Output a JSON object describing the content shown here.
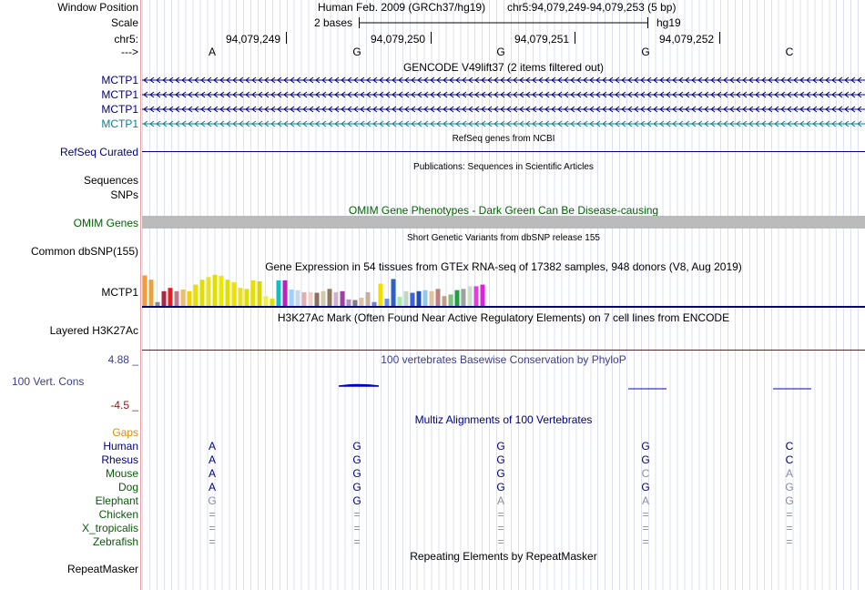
{
  "header": {
    "window_position_label": "Window Position",
    "assembly": "Human Feb. 2009 (GRCh37/hg19)",
    "position": "chr5:94,079,249-94,079,253 (5 bp)",
    "scale_label": "Scale",
    "scale_text": "2 bases",
    "scale_db": "hg19",
    "chrom_label": "chr5:",
    "direction_label": "--->",
    "coords": [
      "94,079,249",
      "94,079,250",
      "94,079,251",
      "94,079,252"
    ]
  },
  "sequence": [
    "A",
    "G",
    "G",
    "G",
    "C"
  ],
  "gencode": {
    "title": "GENCODE V49lift37 (2 items filtered out)",
    "tracks": [
      {
        "label": "MCTP1",
        "color": "#000080"
      },
      {
        "label": "MCTP1",
        "color": "#000080"
      },
      {
        "label": "MCTP1",
        "color": "#000080"
      },
      {
        "label": "MCTP1",
        "color": "#0f7f8f"
      }
    ]
  },
  "refseq": {
    "title": "RefSeq genes from NCBI",
    "label": "RefSeq Curated"
  },
  "publications": {
    "title": "Publications: Sequences in Scientific Articles",
    "label1": "Sequences",
    "label2": "SNPs"
  },
  "omim": {
    "title": "OMIM Gene Phenotypes - Dark Green Can Be Disease-causing",
    "label": "OMIM Genes"
  },
  "dbsnp": {
    "title": "Short Genetic Variants from dbSNP release 155",
    "label": "Common dbSNP(155)"
  },
  "gtex": {
    "title": "Gene Expression in 54 tissues from GTEx RNA-seq of 17382 samples, 948 donors (V8, Aug 2019)",
    "label": "MCTP1",
    "bars": [
      0.93,
      0.8,
      0.12,
      0.45,
      0.55,
      0.45,
      0.5,
      0.45,
      0.65,
      0.8,
      0.88,
      0.95,
      0.92,
      0.8,
      0.72,
      0.55,
      0.52,
      0.78,
      0.75,
      0.3,
      0.22,
      0.78,
      0.78,
      0.5,
      0.48,
      0.42,
      0.42,
      0.4,
      0.45,
      0.52,
      0.42,
      0.45,
      0.2,
      0.18,
      0.25,
      0.42,
      0.12,
      0.68,
      0.22,
      0.82,
      0.28,
      0.45,
      0.4,
      0.45,
      0.48,
      0.45,
      0.52,
      0.3,
      0.35,
      0.48,
      0.52,
      0.6,
      0.6,
      0.65
    ],
    "colors": [
      "#f79a3a",
      "#e8a33a",
      "#8b8b8b",
      "#a52a4a",
      "#e02020",
      "#c0788a",
      "#e8c070",
      "#f0d000",
      "#e8e000",
      "#e0e000",
      "#e8e030",
      "#e0e000",
      "#e8e800",
      "#e0e000",
      "#f0e000",
      "#e8e020",
      "#e0e000",
      "#e8e000",
      "#d8d800",
      "#f0f040",
      "#e0e000",
      "#10c0c0",
      "#c020c0",
      "#a0d0ff",
      "#c8d8e8",
      "#e0b0b0",
      "#f0d0c8",
      "#8b7060",
      "#d0c8b0",
      "#907860",
      "#d0b0d0",
      "#a040a0",
      "#b090c0",
      "#808080",
      "#e0c0a0",
      "#c8b0a0",
      "#7080d0",
      "#f0e000",
      "#6090f0",
      "#3060c0",
      "#a8e8a8",
      "#c0d8c0",
      "#4060e0",
      "#2050b0",
      "#90c8f0",
      "#e0c0a0",
      "#c08080",
      "#c0a080",
      "#80c080",
      "#20a040",
      "#a0a0a0",
      "#c8e0c8",
      "#e040e0",
      "#e020e0"
    ]
  },
  "h3k27ac": {
    "title": "H3K27Ac Mark (Often Found Near Active Regulatory Elements) on 7 cell lines from ENCODE",
    "label": "Layered H3K27Ac"
  },
  "phylop": {
    "title": "100 vertebrates Basewise Conservation by PhyloP",
    "label": "100 Vert. Cons",
    "max_label": "4.88 _",
    "min_label": "-4.5 _"
  },
  "multiz": {
    "title": "Multiz Alignments of 100 Vertebrates",
    "gaps_label": "Gaps",
    "species": [
      {
        "name": "Human",
        "color": "#000080",
        "bases": [
          "A",
          "G",
          "G",
          "G",
          "C"
        ],
        "strong": [
          true,
          true,
          true,
          true,
          true
        ]
      },
      {
        "name": "Rhesus",
        "color": "#000080",
        "bases": [
          "A",
          "G",
          "G",
          "G",
          "C"
        ],
        "strong": [
          true,
          true,
          true,
          true,
          true
        ]
      },
      {
        "name": "Mouse",
        "color": "#0a5a0a",
        "bases": [
          "A",
          "G",
          "G",
          "C",
          "A"
        ],
        "strong": [
          true,
          true,
          true,
          false,
          false
        ]
      },
      {
        "name": "Dog",
        "color": "#0a5a0a",
        "bases": [
          "A",
          "G",
          "G",
          "G",
          "G"
        ],
        "strong": [
          true,
          true,
          true,
          true,
          false
        ]
      },
      {
        "name": "Elephant",
        "color": "#0a5a0a",
        "bases": [
          "G",
          "G",
          "A",
          "A",
          "G"
        ],
        "strong": [
          false,
          true,
          false,
          false,
          false
        ]
      },
      {
        "name": "Chicken",
        "color": "#0a5a0a",
        "bases": [
          "=",
          "=",
          "=",
          "=",
          "="
        ],
        "strong": [
          false,
          false,
          false,
          false,
          false
        ]
      },
      {
        "name": "X_tropicalis",
        "color": "#0a5a0a",
        "bases": [
          "=",
          "=",
          "=",
          "=",
          "="
        ],
        "strong": [
          false,
          false,
          false,
          false,
          false
        ]
      },
      {
        "name": "Zebrafish",
        "color": "#0a5a0a",
        "bases": [
          "=",
          "=",
          "=",
          "=",
          "="
        ],
        "strong": [
          false,
          false,
          false,
          false,
          false
        ]
      }
    ]
  },
  "repeatmasker": {
    "title": "Repeating Elements by RepeatMasker",
    "label": "RepeatMasker"
  },
  "colors": {
    "navy": "#000080",
    "teal": "#0f7f8f",
    "omim_gray": "#bbbbbb",
    "gaps": "#e08a00",
    "phylop_max": "#3d3d8f",
    "phylop_min": "#8b1a1a"
  }
}
